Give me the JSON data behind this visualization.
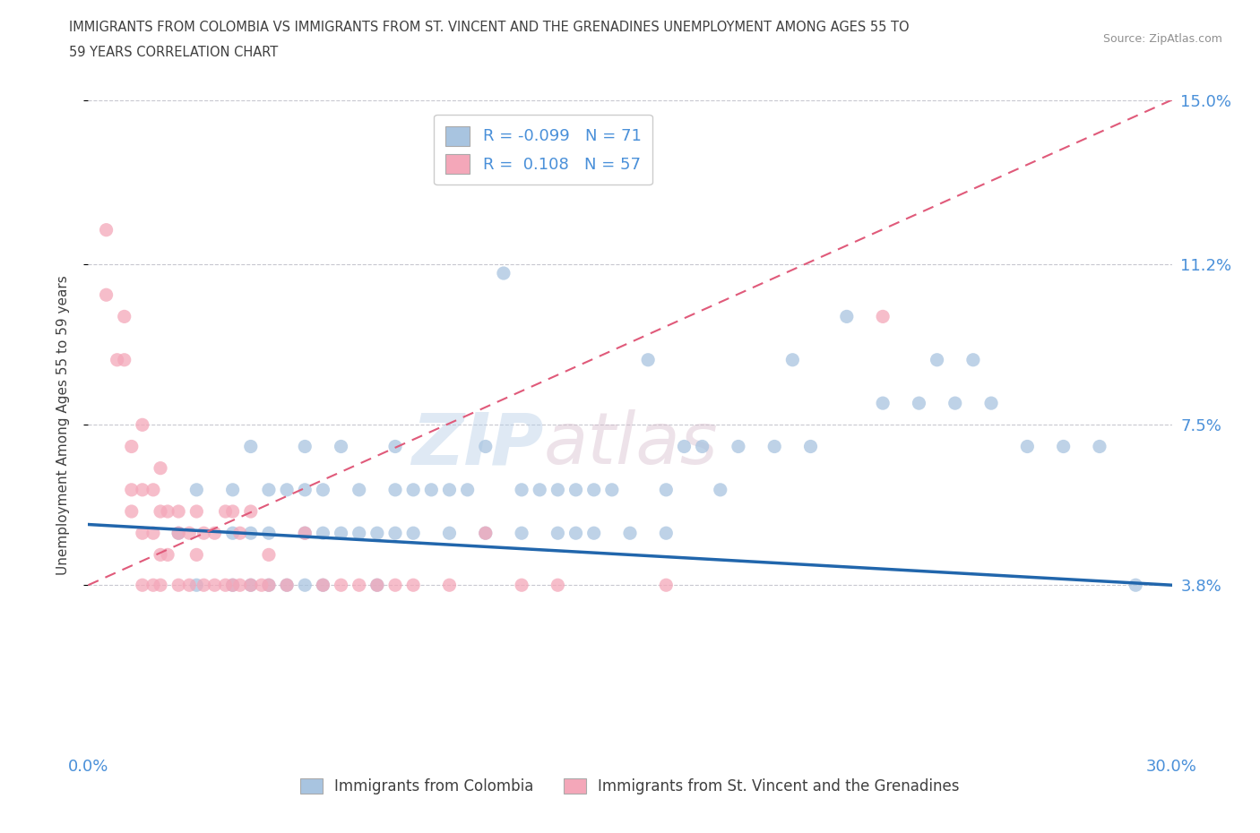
{
  "title_line1": "IMMIGRANTS FROM COLOMBIA VS IMMIGRANTS FROM ST. VINCENT AND THE GRENADINES UNEMPLOYMENT AMONG AGES 55 TO",
  "title_line2": "59 YEARS CORRELATION CHART",
  "source": "Source: ZipAtlas.com",
  "ylabel": "Unemployment Among Ages 55 to 59 years",
  "xlabel_col": "Immigrants from Colombia",
  "xlabel_svg": "Immigrants from St. Vincent and the Grenadines",
  "r_colombia": -0.099,
  "n_colombia": 71,
  "r_svg": 0.108,
  "n_svg": 57,
  "xlim": [
    0.0,
    0.3
  ],
  "ylim": [
    0.0,
    0.15
  ],
  "yticks": [
    0.038,
    0.075,
    0.112,
    0.15
  ],
  "ytick_labels": [
    "3.8%",
    "7.5%",
    "11.2%",
    "15.0%"
  ],
  "xticks": [
    0.0,
    0.3
  ],
  "xtick_labels": [
    "0.0%",
    "30.0%"
  ],
  "color_colombia": "#a8c4e0",
  "color_svg": "#f4a7b9",
  "trendline_colombia": "#2166ac",
  "trendline_svg": "#e05a7a",
  "watermark_zip": "ZIP",
  "watermark_atlas": "atlas",
  "background_color": "#ffffff",
  "grid_color": "#c8c8d0",
  "tick_label_color": "#4a90d9",
  "title_color": "#404040",
  "source_color": "#909090",
  "colombia_x": [
    0.025,
    0.03,
    0.03,
    0.04,
    0.04,
    0.04,
    0.045,
    0.045,
    0.045,
    0.05,
    0.05,
    0.05,
    0.055,
    0.055,
    0.06,
    0.06,
    0.06,
    0.06,
    0.065,
    0.065,
    0.065,
    0.07,
    0.07,
    0.075,
    0.075,
    0.08,
    0.08,
    0.085,
    0.085,
    0.085,
    0.09,
    0.09,
    0.095,
    0.1,
    0.1,
    0.105,
    0.11,
    0.11,
    0.115,
    0.12,
    0.12,
    0.125,
    0.13,
    0.13,
    0.135,
    0.135,
    0.14,
    0.14,
    0.145,
    0.15,
    0.155,
    0.16,
    0.16,
    0.165,
    0.17,
    0.175,
    0.18,
    0.19,
    0.195,
    0.2,
    0.21,
    0.22,
    0.23,
    0.235,
    0.24,
    0.245,
    0.25,
    0.26,
    0.27,
    0.28,
    0.29
  ],
  "colombia_y": [
    0.05,
    0.06,
    0.038,
    0.05,
    0.038,
    0.06,
    0.05,
    0.038,
    0.07,
    0.06,
    0.05,
    0.038,
    0.06,
    0.038,
    0.07,
    0.06,
    0.05,
    0.038,
    0.06,
    0.05,
    0.038,
    0.07,
    0.05,
    0.06,
    0.05,
    0.05,
    0.038,
    0.07,
    0.06,
    0.05,
    0.06,
    0.05,
    0.06,
    0.06,
    0.05,
    0.06,
    0.07,
    0.05,
    0.11,
    0.06,
    0.05,
    0.06,
    0.06,
    0.05,
    0.06,
    0.05,
    0.06,
    0.05,
    0.06,
    0.05,
    0.09,
    0.06,
    0.05,
    0.07,
    0.07,
    0.06,
    0.07,
    0.07,
    0.09,
    0.07,
    0.1,
    0.08,
    0.08,
    0.09,
    0.08,
    0.09,
    0.08,
    0.07,
    0.07,
    0.07,
    0.038
  ],
  "svg_x": [
    0.005,
    0.005,
    0.008,
    0.01,
    0.01,
    0.012,
    0.012,
    0.012,
    0.015,
    0.015,
    0.015,
    0.015,
    0.018,
    0.018,
    0.018,
    0.02,
    0.02,
    0.02,
    0.02,
    0.022,
    0.022,
    0.025,
    0.025,
    0.025,
    0.028,
    0.028,
    0.03,
    0.03,
    0.032,
    0.032,
    0.035,
    0.035,
    0.038,
    0.038,
    0.04,
    0.04,
    0.042,
    0.042,
    0.045,
    0.045,
    0.048,
    0.05,
    0.05,
    0.055,
    0.06,
    0.065,
    0.07,
    0.075,
    0.08,
    0.085,
    0.09,
    0.1,
    0.11,
    0.12,
    0.13,
    0.16,
    0.22
  ],
  "svg_y": [
    0.12,
    0.105,
    0.09,
    0.09,
    0.1,
    0.07,
    0.06,
    0.055,
    0.075,
    0.06,
    0.05,
    0.038,
    0.06,
    0.05,
    0.038,
    0.065,
    0.055,
    0.045,
    0.038,
    0.055,
    0.045,
    0.055,
    0.05,
    0.038,
    0.05,
    0.038,
    0.055,
    0.045,
    0.05,
    0.038,
    0.05,
    0.038,
    0.055,
    0.038,
    0.055,
    0.038,
    0.05,
    0.038,
    0.055,
    0.038,
    0.038,
    0.045,
    0.038,
    0.038,
    0.05,
    0.038,
    0.038,
    0.038,
    0.038,
    0.038,
    0.038,
    0.038,
    0.05,
    0.038,
    0.038,
    0.038,
    0.1
  ],
  "colombia_trendline_x": [
    0.0,
    0.3
  ],
  "colombia_trendline_y": [
    0.052,
    0.038
  ],
  "svg_trendline_x": [
    0.0,
    0.3
  ],
  "svg_trendline_y": [
    0.038,
    0.15
  ]
}
